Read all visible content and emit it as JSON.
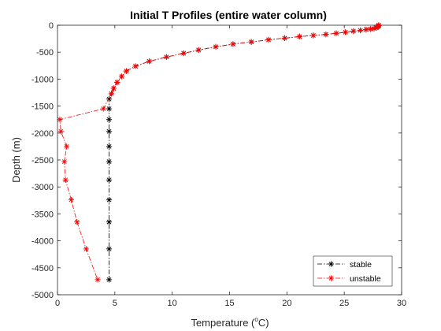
{
  "chart_data": {
    "type": "line",
    "title": "Initial T Profiles (entire water column)",
    "xlabel_text": "Temperature (",
    "xlabel_degree": "o",
    "xlabel_unit": "C)",
    "ylabel": "Depth (m)",
    "xlim": [
      0,
      30
    ],
    "ylim": [
      -5000,
      0
    ],
    "xticks": [
      0,
      5,
      10,
      15,
      20,
      25,
      30
    ],
    "yticks": [
      0,
      -500,
      -1000,
      -1500,
      -2000,
      -2500,
      -3000,
      -3500,
      -4000,
      -4500,
      -5000
    ],
    "grid": false,
    "legend_position": "bottom-right",
    "series": [
      {
        "name": "stable",
        "color": "#000000",
        "line_style": "dash-dot",
        "marker": "asterisk",
        "x": [
          28.0,
          28.0,
          27.95,
          27.9,
          27.8,
          27.6,
          27.3,
          26.9,
          26.4,
          25.8,
          25.1,
          24.3,
          23.4,
          22.3,
          21.1,
          19.8,
          18.4,
          16.9,
          15.3,
          13.8,
          12.3,
          11.0,
          9.5,
          8.0,
          6.8,
          6.0,
          5.6,
          5.2,
          4.9,
          4.7,
          4.5,
          4.5,
          4.5,
          4.5,
          4.5,
          4.5,
          4.5,
          4.5,
          4.5,
          4.5,
          4.5
        ],
        "y": [
          0,
          -10,
          -20,
          -30,
          -45,
          -60,
          -70,
          -80,
          -95,
          -110,
          -130,
          -150,
          -170,
          -190,
          -210,
          -240,
          -270,
          -310,
          -350,
          -400,
          -460,
          -520,
          -590,
          -670,
          -760,
          -850,
          -950,
          -1060,
          -1170,
          -1270,
          -1370,
          -1550,
          -1750,
          -1970,
          -2250,
          -2530,
          -2870,
          -3240,
          -3650,
          -4150,
          -4720
        ]
      },
      {
        "name": "unstable",
        "color": "#ff0000",
        "line_style": "dash-dot",
        "marker": "asterisk",
        "x": [
          28.0,
          28.0,
          27.95,
          27.9,
          27.8,
          27.6,
          27.3,
          26.9,
          26.4,
          25.8,
          25.1,
          24.3,
          23.4,
          22.3,
          21.1,
          19.8,
          18.4,
          16.9,
          15.3,
          13.8,
          12.3,
          11.0,
          9.5,
          8.0,
          6.8,
          6.0,
          5.6,
          5.2,
          4.9,
          4.7,
          4.0,
          0.2,
          0.3,
          0.8,
          0.6,
          0.7,
          1.2,
          1.7,
          2.5,
          3.5
        ],
        "y": [
          0,
          -10,
          -20,
          -30,
          -45,
          -60,
          -70,
          -80,
          -95,
          -110,
          -130,
          -150,
          -170,
          -190,
          -210,
          -240,
          -270,
          -310,
          -350,
          -400,
          -460,
          -520,
          -590,
          -670,
          -760,
          -850,
          -950,
          -1060,
          -1170,
          -1270,
          -1550,
          -1750,
          -1970,
          -2250,
          -2530,
          -2870,
          -3240,
          -3650,
          -4150,
          -4720
        ]
      }
    ]
  }
}
